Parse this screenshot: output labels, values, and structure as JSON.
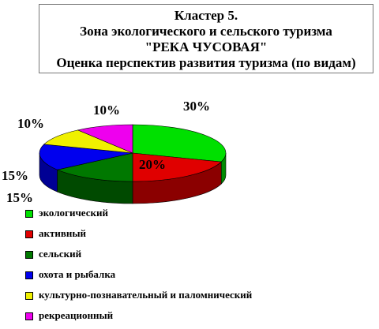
{
  "title": {
    "line1": "Кластер 5.",
    "line2": "Зона экологического и сельского туризма",
    "line3": "\"РЕКА ЧУСОВАЯ\"",
    "line4": "Оценка перспектив развития туризма (по видам)"
  },
  "chart_data": {
    "type": "pie",
    "three_d": true,
    "title": "Оценка перспектив развития туризма (по видам)",
    "categories": [
      "экологический",
      "активный",
      "сельский",
      "охота и рыбалка",
      "культурно-познавательный и паломнический",
      "рекреационный"
    ],
    "values": [
      30,
      20,
      15,
      15,
      10,
      10
    ],
    "data_labels": [
      "30%",
      "20%",
      "15%",
      "15%",
      "10%",
      "10%"
    ],
    "colors": [
      "#00e000",
      "#e00000",
      "#007800",
      "#0000ee",
      "#f0f000",
      "#ee00ee"
    ],
    "legend_position": "bottom-left"
  }
}
